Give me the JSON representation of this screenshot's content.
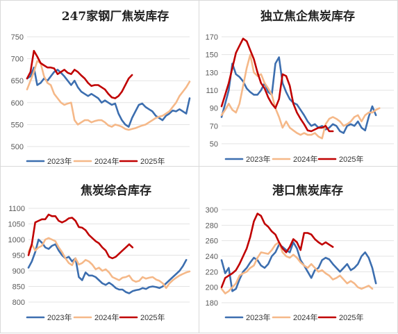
{
  "chart_data": [
    {
      "type": "line",
      "title": "247家钢厂焦炭库存",
      "ylim": [
        500,
        750
      ],
      "yticks": [
        500,
        550,
        600,
        650,
        700,
        750
      ],
      "grid": true,
      "legend_position": "bottom",
      "series": [
        {
          "name": "2023年",
          "color": "#3c6eaf",
          "values": [
            655,
            660,
            680,
            640,
            645,
            655,
            650,
            660,
            670,
            675,
            668,
            660,
            650,
            640,
            650,
            635,
            625,
            620,
            615,
            620,
            615,
            610,
            600,
            605,
            600,
            595,
            598,
            575,
            560,
            550,
            545,
            565,
            580,
            595,
            598,
            590,
            585,
            580,
            570,
            565,
            560,
            570,
            575,
            582,
            580,
            585,
            580,
            575,
            610
          ]
        },
        {
          "name": "2024年",
          "color": "#f5b888",
          "values": [
            630,
            650,
            670,
            695,
            690,
            660,
            645,
            640,
            620,
            610,
            600,
            595,
            598,
            600,
            560,
            550,
            555,
            560,
            560,
            555,
            558,
            560,
            560,
            555,
            548,
            545,
            550,
            548,
            545,
            540,
            538,
            540,
            542,
            545,
            548,
            550,
            555,
            560,
            565,
            568,
            570,
            575,
            580,
            590,
            600,
            615,
            625,
            635,
            648
          ]
        },
        {
          "name": "2025年",
          "color": "#c00000",
          "values": [
            655,
            670,
            718,
            705,
            690,
            685,
            680,
            680,
            678,
            665,
            670,
            675,
            668,
            665,
            675,
            670,
            662,
            655,
            645,
            638,
            640,
            640,
            635,
            630,
            620,
            612,
            610,
            615,
            625,
            640,
            655,
            663
          ]
        }
      ]
    },
    {
      "type": "line",
      "title": "独立焦企焦炭库存",
      "ylim": [
        50,
        170
      ],
      "yticks": [
        50,
        70,
        90,
        110,
        130,
        150,
        170
      ],
      "grid": true,
      "legend_position": "bottom",
      "series": [
        {
          "name": "2023年",
          "color": "#3c6eaf",
          "values": [
            80,
            95,
            110,
            140,
            128,
            125,
            120,
            112,
            108,
            105,
            105,
            110,
            118,
            108,
            105,
            140,
            147,
            118,
            108,
            100,
            96,
            94,
            88,
            82,
            75,
            70,
            72,
            68,
            70,
            66,
            68,
            72,
            70,
            64,
            62,
            70,
            72,
            70,
            75,
            68,
            65,
            80,
            92,
            82
          ]
        },
        {
          "name": "2024年",
          "color": "#f5b888",
          "values": [
            82,
            88,
            95,
            88,
            85,
            95,
            115,
            135,
            150,
            130,
            126,
            128,
            118,
            112,
            105,
            90,
            80,
            68,
            75,
            68,
            65,
            62,
            60,
            62,
            60,
            60,
            62,
            58,
            56,
            72,
            78,
            80,
            78,
            75,
            70,
            72,
            75,
            80,
            82,
            75,
            82,
            85,
            85,
            88,
            90
          ]
        },
        {
          "name": "2025年",
          "color": "#c00000",
          "values": [
            92,
            105,
            118,
            135,
            152,
            160,
            168,
            165,
            155,
            145,
            130,
            118,
            112,
            102,
            95,
            90,
            100,
            128,
            126,
            115,
            95,
            85,
            78,
            72,
            65,
            64,
            66,
            68,
            68,
            70,
            64,
            64
          ]
        }
      ]
    },
    {
      "type": "line",
      "title": "焦炭综合库存",
      "ylim": [
        800,
        1100
      ],
      "yticks": [
        800,
        850,
        900,
        950,
        1000,
        1050,
        1100
      ],
      "grid": true,
      "legend_position": "bottom",
      "series": [
        {
          "name": "2023年",
          "color": "#3c6eaf",
          "values": [
            910,
            930,
            960,
            1000,
            990,
            975,
            970,
            980,
            985,
            965,
            950,
            940,
            945,
            930,
            940,
            880,
            870,
            895,
            885,
            885,
            880,
            870,
            860,
            855,
            862,
            855,
            845,
            840,
            840,
            832,
            828,
            835,
            838,
            840,
            845,
            842,
            848,
            850,
            848,
            845,
            850,
            860,
            870,
            880,
            890,
            900,
            915,
            935
          ]
        },
        {
          "name": "2024年",
          "color": "#f5b888",
          "values": [
            960,
            985,
            965,
            975,
            980,
            1000,
            1005,
            1000,
            995,
            975,
            960,
            940,
            925,
            918,
            940,
            920,
            925,
            935,
            930,
            920,
            905,
            910,
            900,
            905,
            895,
            880,
            875,
            870,
            878,
            880,
            885,
            870,
            865,
            868,
            880,
            875,
            878,
            880,
            872,
            868,
            860,
            845,
            860,
            870,
            878,
            885,
            890,
            895,
            898
          ]
        },
        {
          "name": "2025年",
          "color": "#c00000",
          "values": [
            950,
            985,
            1055,
            1060,
            1065,
            1065,
            1080,
            1075,
            1075,
            1060,
            1055,
            1060,
            1068,
            1070,
            1060,
            1040,
            1038,
            1030,
            1015,
            1005,
            995,
            988,
            975,
            965,
            945,
            940,
            945,
            955,
            965,
            975,
            985,
            975
          ]
        }
      ]
    },
    {
      "type": "line",
      "title": "港口焦炭库存",
      "ylim": [
        180,
        300
      ],
      "yticks": [
        180,
        200,
        220,
        240,
        260,
        280,
        300
      ],
      "grid": true,
      "legend_position": "bottom",
      "series": [
        {
          "name": "2023年",
          "color": "#3c6eaf",
          "values": [
            235,
            218,
            225,
            195,
            198,
            210,
            220,
            225,
            232,
            238,
            235,
            228,
            225,
            230,
            240,
            245,
            255,
            252,
            248,
            245,
            258,
            250,
            235,
            228,
            220,
            212,
            222,
            225,
            235,
            238,
            236,
            230,
            225,
            220,
            225,
            230,
            222,
            225,
            230,
            240,
            245,
            238,
            225,
            205
          ]
        },
        {
          "name": "2024年",
          "color": "#f5b888",
          "values": [
            198,
            192,
            195,
            200,
            205,
            215,
            218,
            220,
            225,
            228,
            238,
            245,
            244,
            243,
            248,
            255,
            258,
            245,
            240,
            238,
            242,
            238,
            232,
            228,
            225,
            230,
            225,
            220,
            222,
            218,
            215,
            210,
            212,
            215,
            210,
            205,
            208,
            205,
            200,
            198,
            200,
            202,
            198
          ]
        },
        {
          "name": "2025年",
          "color": "#c00000",
          "values": [
            200,
            212,
            215,
            218,
            222,
            230,
            240,
            250,
            265,
            285,
            295,
            292,
            282,
            278,
            272,
            268,
            258,
            250,
            245,
            252,
            262,
            258,
            248,
            270,
            270,
            268,
            262,
            258,
            255,
            258,
            255,
            252
          ]
        }
      ]
    }
  ]
}
